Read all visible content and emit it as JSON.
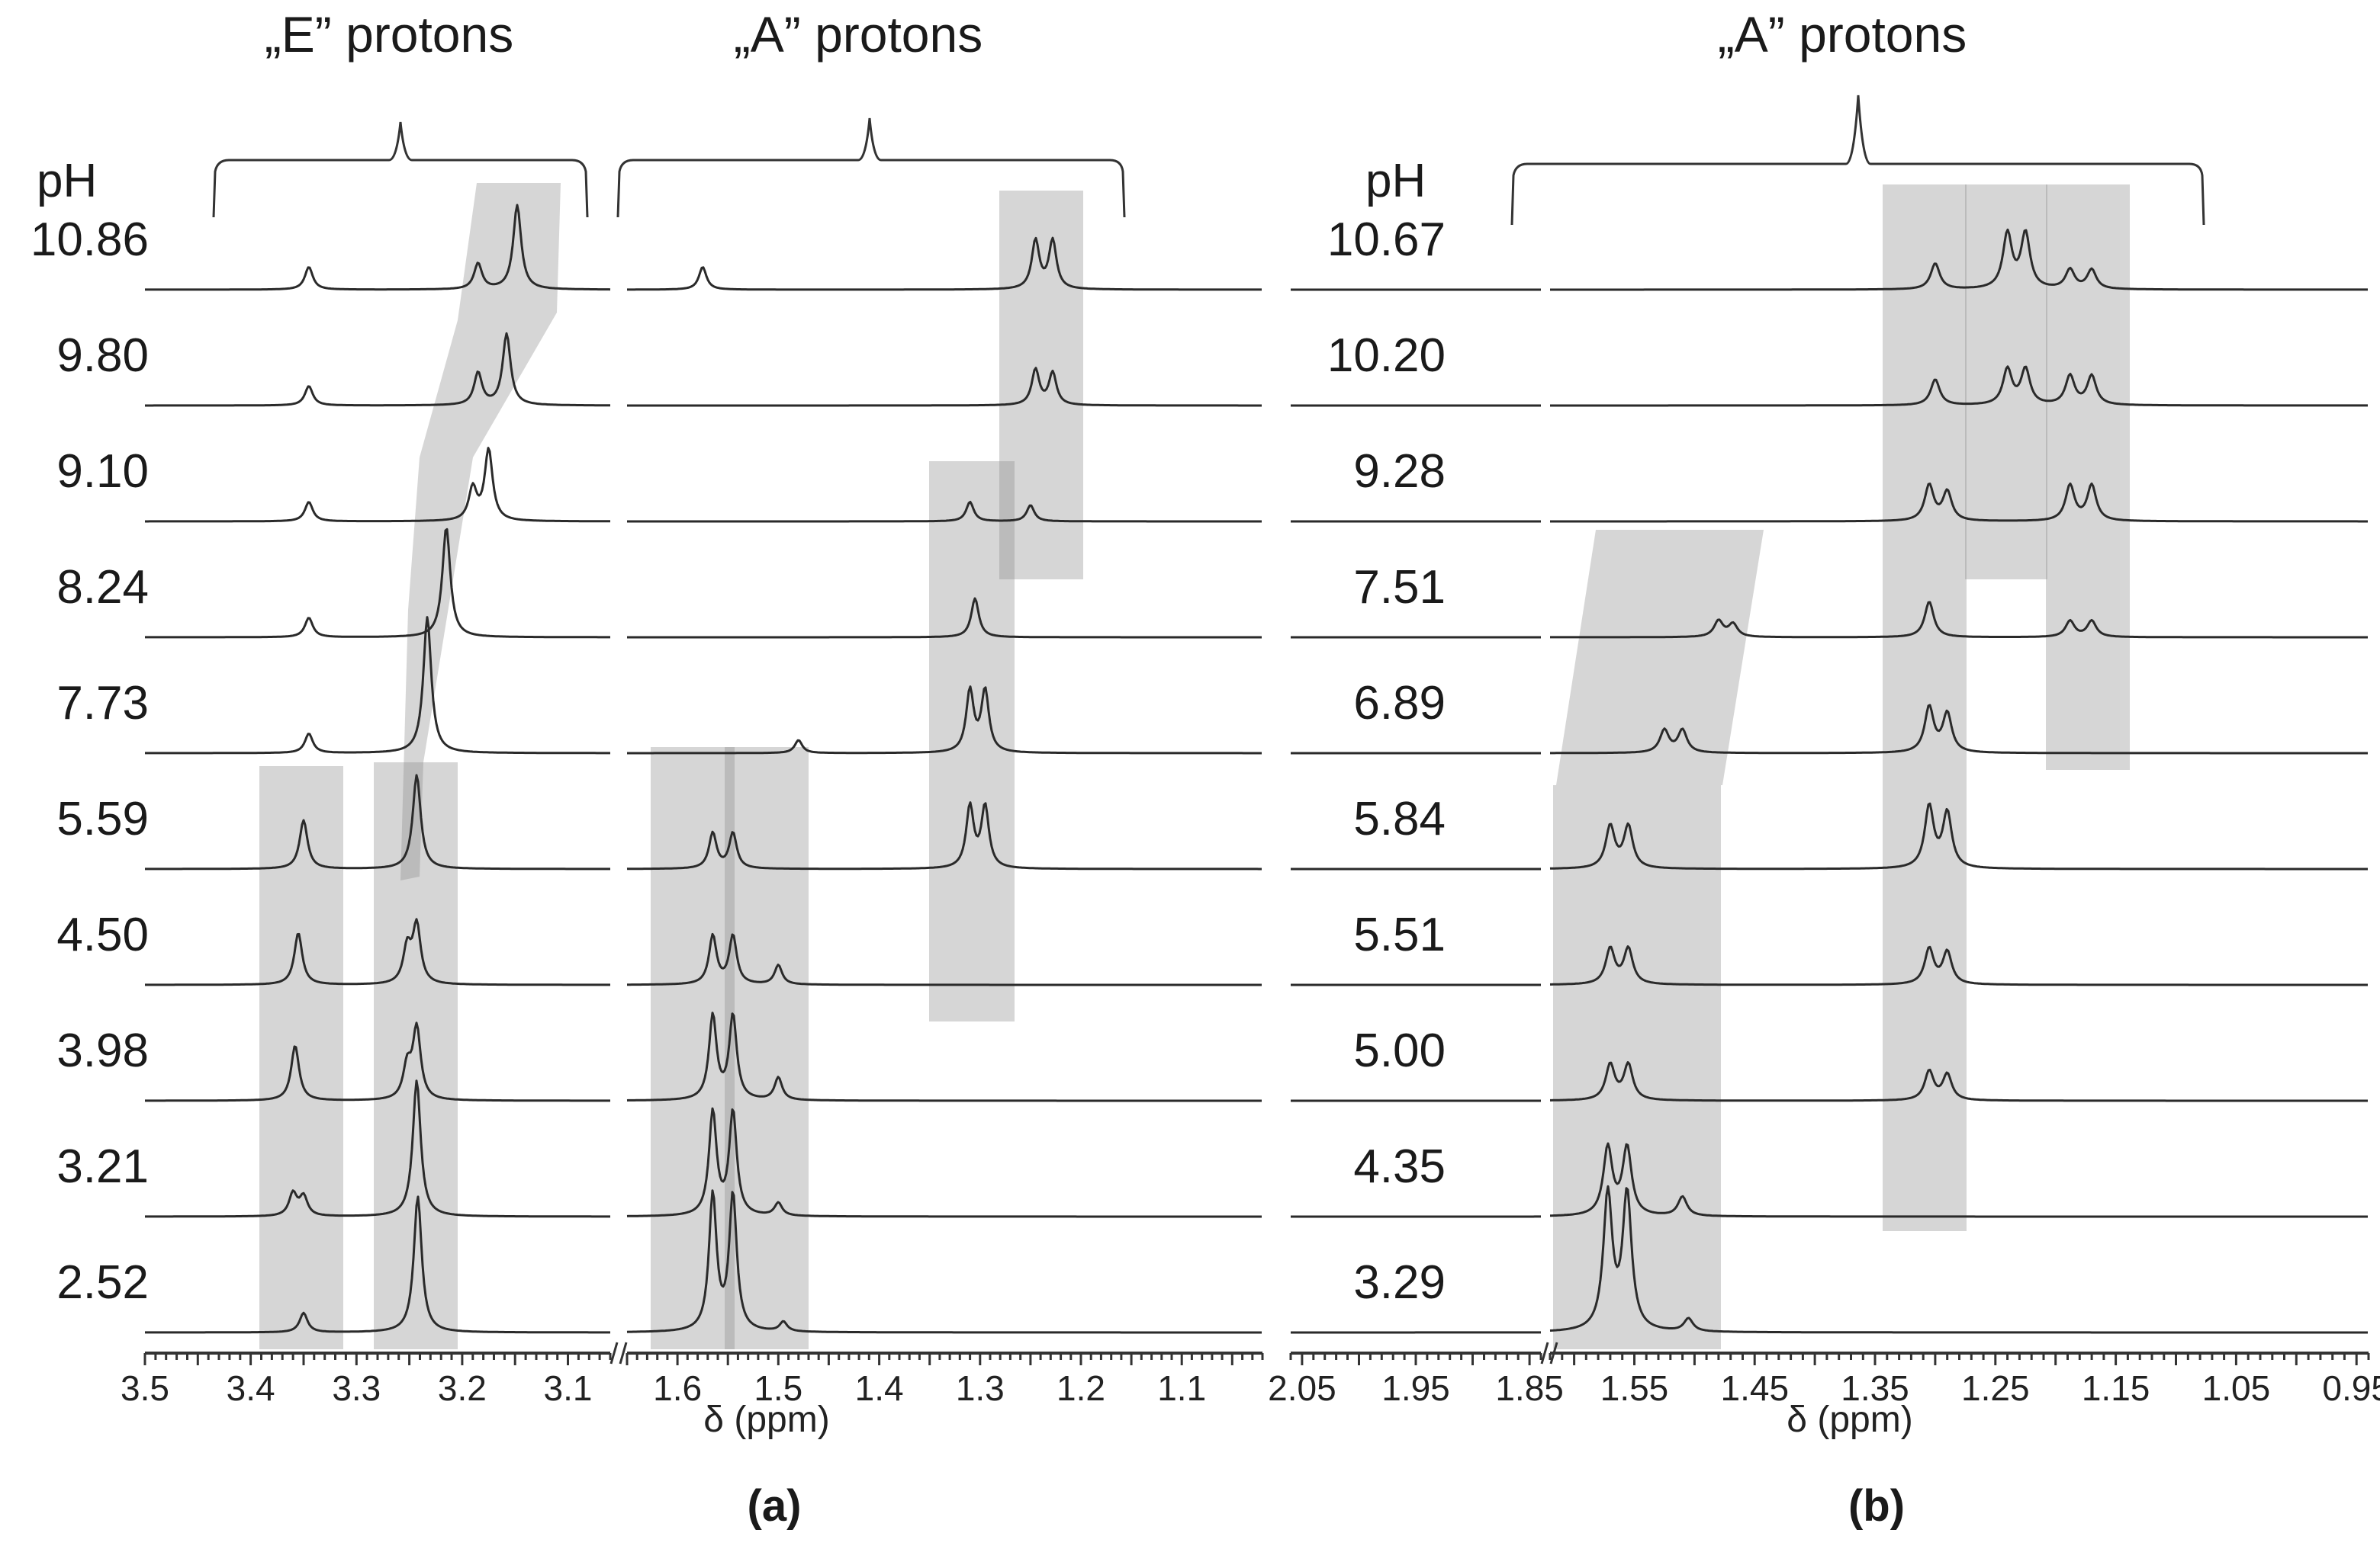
{
  "chart_data": [
    {
      "type": "line",
      "panel": "(a)",
      "title": "",
      "xlabel": "δ (ppm)",
      "ph_header": "pH",
      "ph_values": [
        "10.86",
        "9.80",
        "9.10",
        "8.24",
        "7.73",
        "5.59",
        "4.50",
        "3.98",
        "3.21",
        "2.52"
      ],
      "x_ticks_left": [
        "3.5",
        "3.4",
        "3.3",
        "3.2",
        "3.1"
      ],
      "x_ticks_right": [
        "1.6",
        "1.5",
        "1.4",
        "1.3",
        "1.2",
        "1.1"
      ],
      "xlim_left": [
        3.5,
        3.06
      ],
      "xlim_right": [
        1.65,
        1.02
      ],
      "group_labels": [
        "„E” protons",
        "„A” protons"
      ],
      "series": [
        {
          "pH": 10.86,
          "peaks": [
            {
              "ppm": 3.345,
              "height": 0.35
            },
            {
              "ppm": 3.185,
              "height": 0.4
            },
            {
              "ppm": 3.148,
              "height": 1.3
            },
            {
              "ppm": 1.575,
              "height": 0.35
            },
            {
              "ppm": 1.245,
              "height": 0.75
            },
            {
              "ppm": 1.228,
              "height": 0.75
            }
          ]
        },
        {
          "pH": 9.8,
          "peaks": [
            {
              "ppm": 3.345,
              "height": 0.3
            },
            {
              "ppm": 3.185,
              "height": 0.5
            },
            {
              "ppm": 3.158,
              "height": 1.1
            },
            {
              "ppm": 1.245,
              "height": 0.55
            },
            {
              "ppm": 1.228,
              "height": 0.5
            }
          ]
        },
        {
          "pH": 9.1,
          "peaks": [
            {
              "ppm": 3.345,
              "height": 0.3
            },
            {
              "ppm": 3.19,
              "height": 0.5
            },
            {
              "ppm": 3.175,
              "height": 1.1
            },
            {
              "ppm": 1.31,
              "height": 0.3
            },
            {
              "ppm": 1.25,
              "height": 0.25
            }
          ]
        },
        {
          "pH": 8.24,
          "peaks": [
            {
              "ppm": 3.345,
              "height": 0.3
            },
            {
              "ppm": 3.215,
              "height": 1.7
            },
            {
              "ppm": 1.305,
              "height": 0.6
            }
          ]
        },
        {
          "pH": 7.73,
          "peaks": [
            {
              "ppm": 3.345,
              "height": 0.3
            },
            {
              "ppm": 3.233,
              "height": 2.1
            },
            {
              "ppm": 1.48,
              "height": 0.2
            },
            {
              "ppm": 1.31,
              "height": 0.95
            },
            {
              "ppm": 1.295,
              "height": 0.95
            }
          ]
        },
        {
          "pH": 5.59,
          "peaks": [
            {
              "ppm": 3.35,
              "height": 0.75
            },
            {
              "ppm": 3.243,
              "height": 1.45
            },
            {
              "ppm": 1.565,
              "height": 0.55
            },
            {
              "ppm": 1.545,
              "height": 0.55
            },
            {
              "ppm": 1.31,
              "height": 0.95
            },
            {
              "ppm": 1.295,
              "height": 0.95
            }
          ]
        },
        {
          "pH": 4.5,
          "peaks": [
            {
              "ppm": 3.355,
              "height": 0.8
            },
            {
              "ppm": 3.252,
              "height": 0.55
            },
            {
              "ppm": 3.243,
              "height": 0.9
            },
            {
              "ppm": 1.565,
              "height": 0.75
            },
            {
              "ppm": 1.545,
              "height": 0.75
            },
            {
              "ppm": 1.5,
              "height": 0.3
            }
          ]
        },
        {
          "pH": 3.98,
          "peaks": [
            {
              "ppm": 3.358,
              "height": 0.85
            },
            {
              "ppm": 3.252,
              "height": 0.5
            },
            {
              "ppm": 3.243,
              "height": 1.1
            },
            {
              "ppm": 1.565,
              "height": 1.3
            },
            {
              "ppm": 1.545,
              "height": 1.3
            },
            {
              "ppm": 1.5,
              "height": 0.35
            }
          ]
        },
        {
          "pH": 3.21,
          "peaks": [
            {
              "ppm": 3.36,
              "height": 0.35
            },
            {
              "ppm": 3.35,
              "height": 0.3
            },
            {
              "ppm": 3.243,
              "height": 2.1
            },
            {
              "ppm": 1.565,
              "height": 1.6
            },
            {
              "ppm": 1.545,
              "height": 1.6
            },
            {
              "ppm": 1.5,
              "height": 0.2
            }
          ]
        },
        {
          "pH": 2.52,
          "peaks": [
            {
              "ppm": 3.35,
              "height": 0.3
            },
            {
              "ppm": 3.242,
              "height": 2.1
            },
            {
              "ppm": 1.565,
              "height": 2.1
            },
            {
              "ppm": 1.545,
              "height": 2.1
            },
            {
              "ppm": 1.495,
              "height": 0.15
            }
          ]
        }
      ]
    },
    {
      "type": "line",
      "panel": "(b)",
      "title": "",
      "xlabel": "δ (ppm)",
      "ph_header": "pH",
      "ph_values": [
        "10.67",
        "10.20",
        "9.28",
        "7.51",
        "6.89",
        "5.84",
        "5.51",
        "5.00",
        "4.35",
        "3.29"
      ],
      "x_ticks_left": [
        "2.05",
        "1.95",
        "1.85"
      ],
      "x_ticks_right": [
        "1.55",
        "1.45",
        "1.35",
        "1.25",
        "1.15",
        "1.05",
        "0.95"
      ],
      "xlim_left": [
        2.06,
        1.84
      ],
      "xlim_right": [
        1.62,
        0.94
      ],
      "group_labels": [
        "„A” protons"
      ],
      "series": [
        {
          "pH": 10.67,
          "peaks": [
            {
              "ppm": 1.3,
              "height": 0.4
            },
            {
              "ppm": 1.24,
              "height": 0.85
            },
            {
              "ppm": 1.225,
              "height": 0.85
            },
            {
              "ppm": 1.188,
              "height": 0.3
            },
            {
              "ppm": 1.17,
              "height": 0.3
            }
          ]
        },
        {
          "pH": 10.2,
          "peaks": [
            {
              "ppm": 1.3,
              "height": 0.4
            },
            {
              "ppm": 1.24,
              "height": 0.55
            },
            {
              "ppm": 1.225,
              "height": 0.55
            },
            {
              "ppm": 1.188,
              "height": 0.45
            },
            {
              "ppm": 1.17,
              "height": 0.45
            }
          ]
        },
        {
          "pH": 9.28,
          "peaks": [
            {
              "ppm": 1.305,
              "height": 0.55
            },
            {
              "ppm": 1.29,
              "height": 0.45
            },
            {
              "ppm": 1.188,
              "height": 0.55
            },
            {
              "ppm": 1.17,
              "height": 0.55
            }
          ]
        },
        {
          "pH": 7.51,
          "peaks": [
            {
              "ppm": 1.48,
              "height": 0.25
            },
            {
              "ppm": 1.468,
              "height": 0.2
            },
            {
              "ppm": 1.305,
              "height": 0.55
            },
            {
              "ppm": 1.188,
              "height": 0.25
            },
            {
              "ppm": 1.17,
              "height": 0.25
            }
          ]
        },
        {
          "pH": 6.89,
          "peaks": [
            {
              "ppm": 1.525,
              "height": 0.35
            },
            {
              "ppm": 1.51,
              "height": 0.35
            },
            {
              "ppm": 1.305,
              "height": 0.7
            },
            {
              "ppm": 1.29,
              "height": 0.6
            }
          ]
        },
        {
          "pH": 5.84,
          "peaks": [
            {
              "ppm": 1.57,
              "height": 0.65
            },
            {
              "ppm": 1.555,
              "height": 0.65
            },
            {
              "ppm": 1.305,
              "height": 0.95
            },
            {
              "ppm": 1.29,
              "height": 0.85
            }
          ]
        },
        {
          "pH": 5.51,
          "peaks": [
            {
              "ppm": 1.57,
              "height": 0.55
            },
            {
              "ppm": 1.555,
              "height": 0.55
            },
            {
              "ppm": 1.305,
              "height": 0.55
            },
            {
              "ppm": 1.29,
              "height": 0.5
            }
          ]
        },
        {
          "pH": 5.0,
          "peaks": [
            {
              "ppm": 1.57,
              "height": 0.55
            },
            {
              "ppm": 1.555,
              "height": 0.55
            },
            {
              "ppm": 1.305,
              "height": 0.45
            },
            {
              "ppm": 1.29,
              "height": 0.4
            }
          ]
        },
        {
          "pH": 4.35,
          "peaks": [
            {
              "ppm": 1.572,
              "height": 1.05
            },
            {
              "ppm": 1.556,
              "height": 1.05
            },
            {
              "ppm": 1.51,
              "height": 0.3
            }
          ]
        },
        {
          "pH": 3.29,
          "peaks": [
            {
              "ppm": 1.572,
              "height": 2.1
            },
            {
              "ppm": 1.556,
              "height": 2.1
            },
            {
              "ppm": 1.505,
              "height": 0.2
            }
          ]
        }
      ]
    }
  ]
}
